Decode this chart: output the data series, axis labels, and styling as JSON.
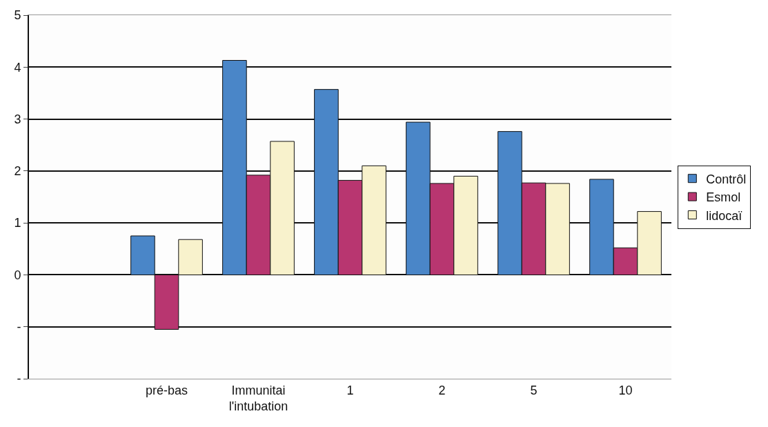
{
  "chart_data": {
    "type": "bar",
    "categories": [
      null,
      "pré-bas",
      "Immunitai\nl'intubation",
      "1",
      "2",
      "5",
      "10"
    ],
    "series": [
      {
        "name": "Contrôl",
        "color": "#4a86c8",
        "values": [
          null,
          0.75,
          4.13,
          3.57,
          2.94,
          2.76,
          1.84
        ]
      },
      {
        "name": "Esmol",
        "color": "#b83670",
        "values": [
          null,
          -1.05,
          1.92,
          1.82,
          1.76,
          1.77,
          0.52
        ]
      },
      {
        "name": "lidocaï",
        "color": "#f8f2cc",
        "values": [
          null,
          0.68,
          2.57,
          2.1,
          1.9,
          1.76,
          1.22
        ]
      }
    ],
    "ylim": [
      -2,
      5
    ],
    "yticks": [
      {
        "value": -2,
        "label": "-"
      },
      {
        "value": -1,
        "label": "-"
      },
      0,
      1,
      2,
      3,
      4,
      5
    ],
    "grid": "y",
    "legend": "right"
  }
}
